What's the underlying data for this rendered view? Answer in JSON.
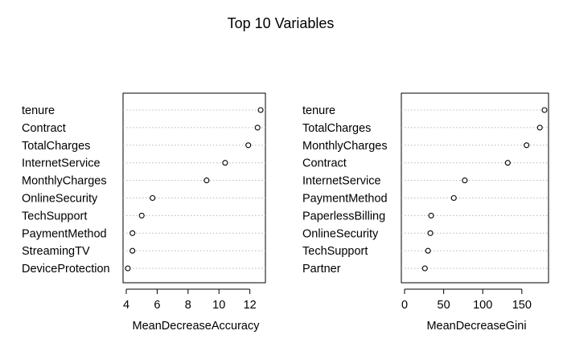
{
  "chart_data": {
    "title": "Top 10 Variables",
    "panels": [
      {
        "type": "scatter",
        "xlabel": "MeanDecreaseAccuracy",
        "xlim": [
          4,
          12.8
        ],
        "xticks": [
          4,
          6,
          8,
          10,
          12
        ],
        "categories": [
          "tenure",
          "Contract",
          "TotalCharges",
          "InternetService",
          "MonthlyCharges",
          "OnlineSecurity",
          "TechSupport",
          "PaymentMethod",
          "StreamingTV",
          "DeviceProtection"
        ],
        "values": [
          12.7,
          12.5,
          11.9,
          10.4,
          9.2,
          5.7,
          5.0,
          4.4,
          4.4,
          4.1
        ]
      },
      {
        "type": "scatter",
        "xlabel": "MeanDecreaseGini",
        "xlim": [
          0,
          180
        ],
        "xticks": [
          0,
          50,
          100,
          150
        ],
        "categories": [
          "tenure",
          "TotalCharges",
          "MonthlyCharges",
          "Contract",
          "InternetService",
          "PaymentMethod",
          "PaperlessBilling",
          "OnlineSecurity",
          "TechSupport",
          "Partner"
        ],
        "values": [
          179,
          173,
          156,
          132,
          77,
          63,
          34,
          33,
          30,
          26
        ]
      }
    ]
  }
}
